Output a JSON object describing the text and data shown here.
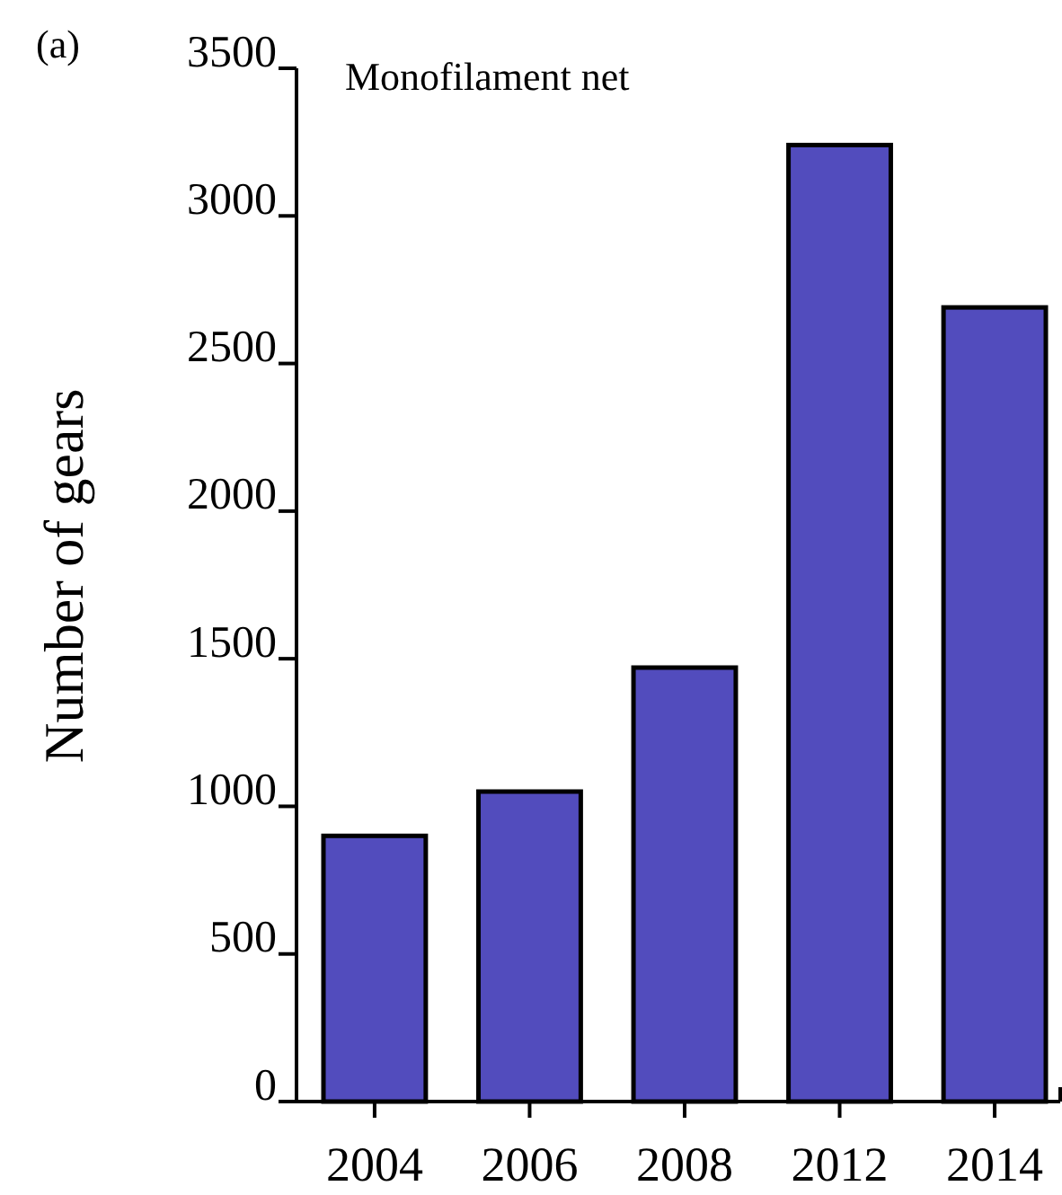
{
  "chart_data": {
    "type": "bar",
    "title": "Monofilament net",
    "ylabel": "Number of gears",
    "annotations": [
      "(a)"
    ],
    "categories": [
      "2004",
      "2006",
      "2008",
      "2012",
      "2014"
    ],
    "values": [
      900,
      1050,
      1470,
      3240,
      2690
    ],
    "color": "#524cbd",
    "ylim": [
      0,
      3500
    ],
    "yticks": [
      0,
      500,
      1000,
      1500,
      2000,
      2500,
      3000,
      3500
    ]
  }
}
